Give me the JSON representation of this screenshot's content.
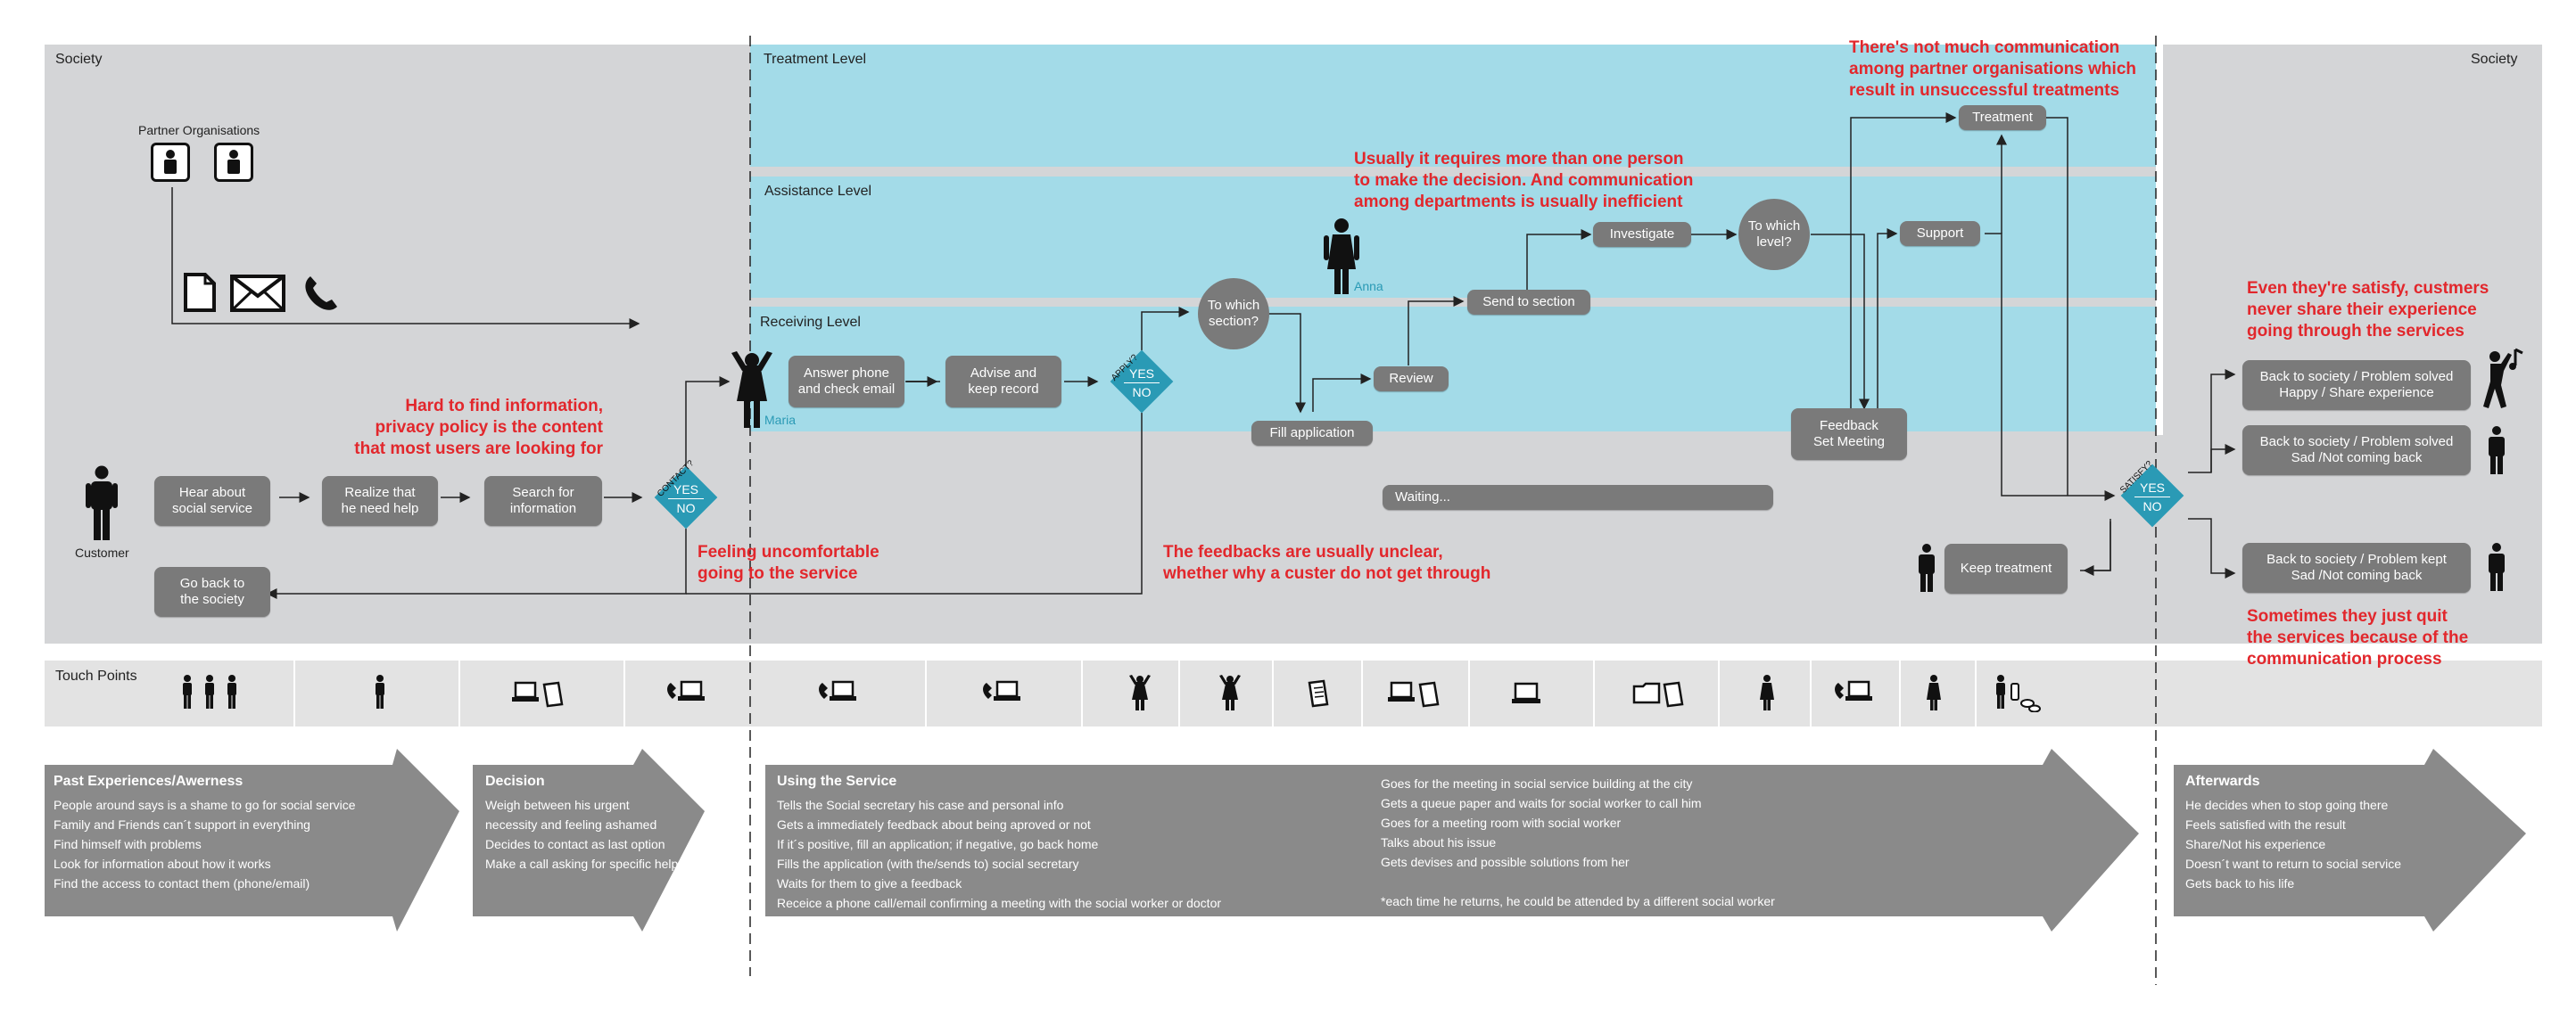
{
  "lanes": {
    "society_left": "Society",
    "society_right": "Society",
    "treatment": "Treatment Level",
    "assistance": "Assistance Level",
    "receiving": "Receiving Level",
    "touch_points": "Touch Points"
  },
  "actors": {
    "partner_orgs": "Partner Organisations",
    "customer": "Customer",
    "maria": "Maria",
    "anna": "Anna"
  },
  "nodes": {
    "hear_about": "Hear about\nsocial service",
    "realize": "Realize that\nhe need help",
    "search": "Search for\ninformation",
    "go_back": "Go back to\nthe society",
    "answer_phone": "Answer phone\nand check email",
    "advise": "Advise and\nkeep record",
    "which_section": "To which\nsection?",
    "fill_application": "Fill application",
    "review": "Review",
    "send_to_section": "Send to section",
    "investigate": "Investigate",
    "which_level": "To which\nlevel?",
    "support": "Support",
    "treatment": "Treatment",
    "feedback": "Feedback\nSet Meeting",
    "waiting": "Waiting...",
    "keep_treatment": "Keep treatment",
    "outcome1": "Back to society / Problem solved\nHappy / Share experience",
    "outcome2": "Back to society / Problem solved\nSad /Not coming back",
    "outcome3": "Back to society / Problem kept\nSad /Not coming back"
  },
  "decisions": {
    "contact": {
      "q": "CONTACT?",
      "yes": "YES",
      "no": "NO"
    },
    "apply": {
      "q": "APPLY?",
      "yes": "YES",
      "no": "NO"
    },
    "satisfy": {
      "q": "SATISFY?",
      "yes": "YES",
      "no": "NO"
    }
  },
  "annotations": {
    "hard_to_find": "Hard to find information,\nprivacy policy is the content\nthat most users are looking for",
    "uncomfortable": "Feeling uncomfortable\ngoing to the service",
    "feedbacks_unclear": "The feedbacks are usually unclear,\nwhether why a custer do not get through",
    "more_than_one": "Usually it requires more than one person\nto make the decision. And communication\namong departments  is usually inefficient",
    "not_much_comm": "There's not much communication\namong partner organisations which\nresult in unsuccessful treatments",
    "never_share": "Even they're satisfy, custmers\nnever share their experience\ngoing through the services",
    "quit": "Sometimes they just quit\nthe services because of the\ncommunication process"
  },
  "phases": {
    "past": {
      "title": "Past Experiences/Awerness",
      "items": [
        "People around says is a shame to go for social service",
        "Family and Friends can´t support in everything",
        "Find himself with problems",
        "Look for information about how it works",
        "Find the access to contact them (phone/email)"
      ]
    },
    "decision": {
      "title": "Decision",
      "items": [
        "Weigh between his urgent",
        "necessity and feeling ashamed",
        "Decides to contact as last option",
        "Make a call asking for specific help"
      ]
    },
    "using": {
      "title": "Using the Service",
      "items_left": [
        "Tells the Social secretary his case and personal info",
        "Gets a immediately feedback about being aproved or not",
        "If it´s positive, fill an application; if negative, go back home",
        "Fills the application (with the/sends to) social secretary",
        "Waits for them to give a feedback",
        "Receice a phone call/email confirming a meeting with the social worker or doctor"
      ],
      "items_right": [
        "Goes for the meeting in social service building at the city",
        "Gets a queue paper and waits for social worker to call him",
        "Goes for a meeting room with social worker",
        "Talks about his issue",
        "Gets devises and possible solutions from her",
        "",
        "*each time he returns, he could be attended by a different social worker"
      ]
    },
    "after": {
      "title": "Afterwards",
      "items": [
        "He decides when to stop going there",
        "Feels satisfied with the result",
        "Share/Not his experience",
        "Doesn´t want to return to social service",
        "Gets back to his life"
      ]
    }
  },
  "colors": {
    "society_bg": "#d4d5d7",
    "level_bg": "#a3dbe8",
    "node": "#7a7a7a",
    "decision": "#2a9ab5",
    "annotation": "#e2272c",
    "phase_arrow": "#8a8a8a"
  },
  "icons": [
    "person-icon",
    "document-icon",
    "envelope-icon",
    "phone-icon",
    "laptop-icon",
    "folder-icon",
    "music-note-icon"
  ]
}
